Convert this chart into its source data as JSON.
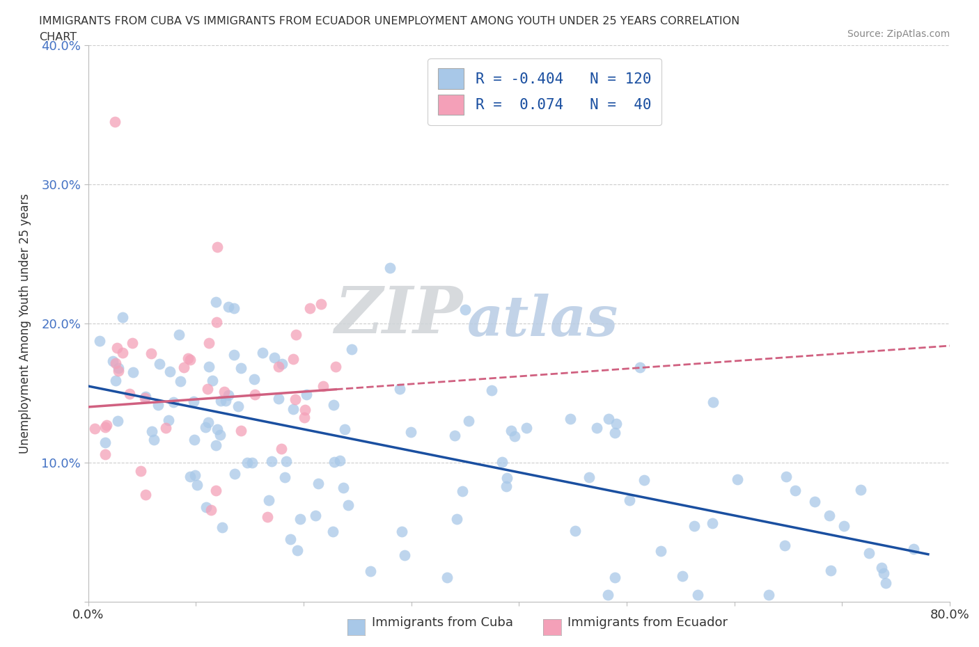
{
  "title_line1": "IMMIGRANTS FROM CUBA VS IMMIGRANTS FROM ECUADOR UNEMPLOYMENT AMONG YOUTH UNDER 25 YEARS CORRELATION",
  "title_line2": "CHART",
  "source": "Source: ZipAtlas.com",
  "ylabel": "Unemployment Among Youth under 25 years",
  "xlim": [
    0.0,
    0.8
  ],
  "ylim": [
    0.0,
    0.4
  ],
  "cuba_color": "#a8c8e8",
  "ecuador_color": "#f4a0b8",
  "cuba_line_color": "#1a4fa0",
  "ecuador_line_color": "#d06080",
  "cuba_R": -0.404,
  "ecuador_R": 0.074,
  "cuba_N": 120,
  "ecuador_N": 40,
  "background_color": "#ffffff",
  "grid_color": "#cccccc",
  "ytick_color": "#4472c4",
  "legend_text_color": "#1a4fa0"
}
